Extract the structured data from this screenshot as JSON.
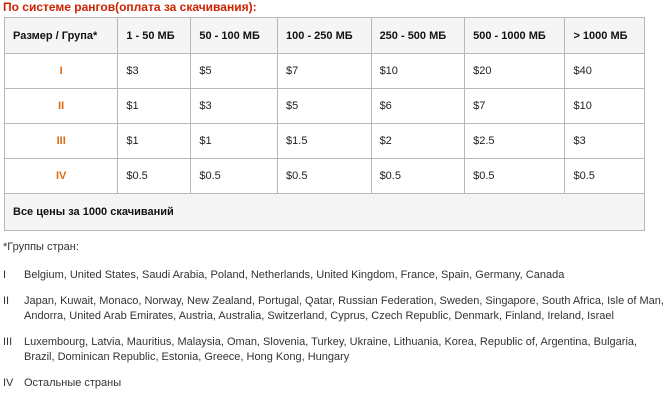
{
  "title": "По системе рангов(оплата за скачивания):",
  "table": {
    "headers": [
      "Размер / Група*",
      "1 - 50 МБ",
      "50 - 100 МБ",
      "100 - 250 МБ",
      "250 - 500 МБ",
      "500 - 1000 МБ",
      "> 1000 МБ"
    ],
    "rows": [
      {
        "group": "I",
        "prices": [
          "$3",
          "$5",
          "$7",
          "$10",
          "$20",
          "$40"
        ]
      },
      {
        "group": "II",
        "prices": [
          "$1",
          "$3",
          "$5",
          "$6",
          "$7",
          "$10"
        ]
      },
      {
        "group": "III",
        "prices": [
          "$1",
          "$1",
          "$1.5",
          "$2",
          "$2.5",
          "$3"
        ]
      },
      {
        "group": "IV",
        "prices": [
          "$0.5",
          "$0.5",
          "$0.5",
          "$0.5",
          "$0.5",
          "$0.5"
        ]
      }
    ],
    "footer": "Все цены за 1000 скачиваний"
  },
  "note": "*Группы стран:",
  "country_groups": [
    {
      "num": "I",
      "countries": "Belgium, United States, Saudi Arabia, Poland, Netherlands, United Kingdom, France, Spain, Germany, Canada"
    },
    {
      "num": "II",
      "countries": "Japan, Kuwait, Monaco, Norway, New Zealand, Portugal, Qatar, Russian Federation, Sweden, Singapore, South Africa, Isle of Man, Andorra, United Arab Emirates, Austria, Australia, Switzerland, Cyprus, Czech Republic, Denmark, Finland, Ireland, Israel"
    },
    {
      "num": "III",
      "countries": "Luxembourg, Latvia, Mauritius, Malaysia, Oman, Slovenia, Turkey, Ukraine, Lithuania, Korea, Republic of, Argentina, Bulgaria, Brazil, Dominican Republic, Estonia, Greece, Hong Kong, Hungary"
    },
    {
      "num": "IV",
      "countries": "Остальные страны"
    }
  ],
  "colors": {
    "title": "#cc2200",
    "group_label": "#e06a10",
    "border": "#b8b8b8"
  }
}
